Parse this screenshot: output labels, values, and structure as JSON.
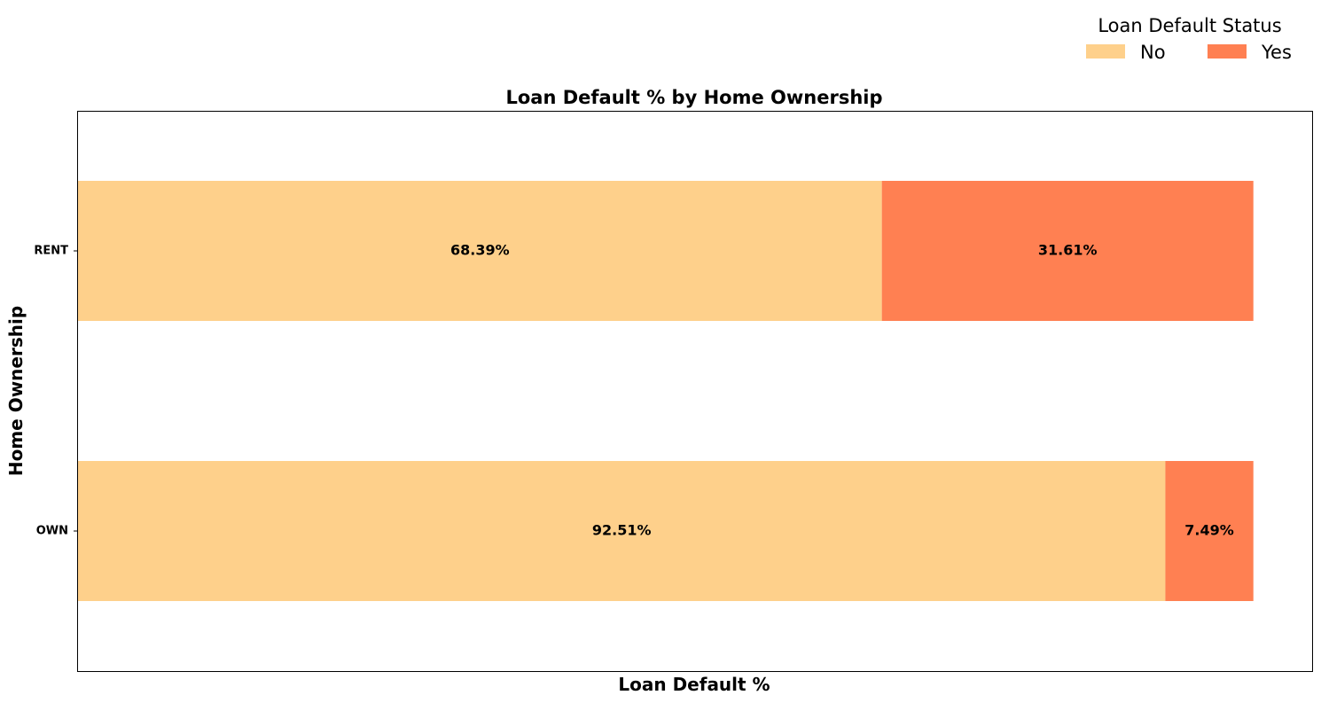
{
  "chart_data": {
    "type": "bar",
    "orientation": "horizontal",
    "stacked": true,
    "title": "Loan Default % by Home Ownership",
    "xlabel": "Loan Default %",
    "ylabel": "Home Ownership",
    "categories": [
      "RENT",
      "OWN"
    ],
    "series": [
      {
        "name": "No",
        "values": [
          68.39,
          92.51
        ],
        "labels": [
          "68.39%",
          "92.51%"
        ],
        "color": "#fed08b"
      },
      {
        "name": "Yes",
        "values": [
          31.61,
          7.49
        ],
        "labels": [
          "31.61%",
          "7.49%"
        ],
        "color": "#ff8052"
      }
    ],
    "xlim": [
      0,
      105
    ],
    "legend": {
      "title": "Loan Default Status",
      "placement": "top-right"
    },
    "grid": false
  }
}
